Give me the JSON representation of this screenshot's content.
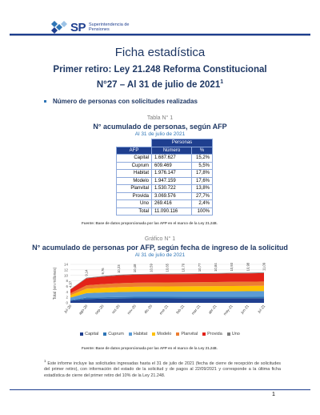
{
  "header": {
    "logo_abbr": "SP",
    "logo_line1": "Superintendencia de",
    "logo_line2": "Pensiones"
  },
  "title": "Ficha estadística",
  "subtitle_line1": "Primer retiro: Ley 21.248 Reforma Constitucional",
  "subtitle_line2": "N°27 – Al 31 de julio de 2021",
  "subtitle_footmark": "1",
  "section_heading": "Número de personas con solicitudes realizadas",
  "table": {
    "label": "Tabla N° 1",
    "title": "N° acumulado de personas, según AFP",
    "date": "Al 31 de julio de 2021",
    "group_header": "Personas",
    "columns": [
      "AFP",
      "Número",
      "%"
    ],
    "rows": [
      [
        "Capital",
        "1.687.627",
        "15,2%"
      ],
      [
        "Cuprum",
        "609.469",
        "5,5%"
      ],
      [
        "Habitat",
        "1.976.147",
        "17,8%"
      ],
      [
        "Modelo",
        "1.947.159",
        "17,6%"
      ],
      [
        "Planvital",
        "1.530.722",
        "13,8%"
      ],
      [
        "Provida",
        "3.069.576",
        "27,7%"
      ],
      [
        "Uno",
        "269.416",
        "2,4%"
      ],
      [
        "Total",
        "11.090.116",
        "100%"
      ]
    ],
    "source": "Fuente: Base de datos proporcionada por las AFP en el marco de la Ley 21.248."
  },
  "graph": {
    "label": "Gráfico N° 1",
    "title": "N° acumulado de personas por AFP, según fecha de ingreso de la solicitud",
    "date": "Al 31 de julio de 2021",
    "source": "Fuente: Base de datos proporcionada por las AFP en el marco de la Ley 21.248."
  },
  "chart_data": {
    "type": "area",
    "stacked": true,
    "ylabel": "Total (en millones)",
    "ylim": [
      0,
      14
    ],
    "yticks": [
      0,
      2,
      4,
      6,
      8,
      10,
      12,
      14
    ],
    "grid": true,
    "legend_position": "bottom",
    "x": [
      "jul-20",
      "ago-20",
      "sep-20",
      "oct-20",
      "nov-20",
      "dic-20",
      "ene-21",
      "feb-21",
      "mar-21",
      "abr-21",
      "may-21",
      "jun-21",
      "jul-21"
    ],
    "totals": [
      4.97,
      9.14,
      9.76,
      10.23,
      10.48,
      10.59,
      10.65,
      10.7,
      10.77,
      10.84,
      10.93,
      10.98,
      11.09
    ],
    "total_labels": [
      "4,97",
      "9,14",
      "9,76",
      "10,23",
      "10,48",
      "10,59",
      "10,65",
      "10,70",
      "10,77",
      "10,84",
      "10,93",
      "10,98",
      "11,09"
    ],
    "series": [
      {
        "name": "Capital",
        "color": "#1f3f8f",
        "share": 0.152
      },
      {
        "name": "Cuprum",
        "color": "#2e75b6",
        "share": 0.055
      },
      {
        "name": "Habitat",
        "color": "#5b9bd5",
        "share": 0.178
      },
      {
        "name": "Modelo",
        "color": "#ffc000",
        "share": 0.176
      },
      {
        "name": "Planvital",
        "color": "#ed7d31",
        "share": 0.138
      },
      {
        "name": "Provida",
        "color": "#e32219",
        "share": 0.277
      },
      {
        "name": "Uno",
        "color": "#7f7f7f",
        "share": 0.024
      }
    ]
  },
  "footnote_mark": "1",
  "footnote": "Este informe incluye las solicitudes ingresadas hasta el 31 de julio de 2021 (fecha de cierre de recepción de solicitudes del primer retiro), con información del estado de la solicitud y de pagos al 22/09/2021 y corresponde a la última ficha estadística de cierre del primer retiro del 10% de la Ley 21.248.",
  "page_number": "1"
}
